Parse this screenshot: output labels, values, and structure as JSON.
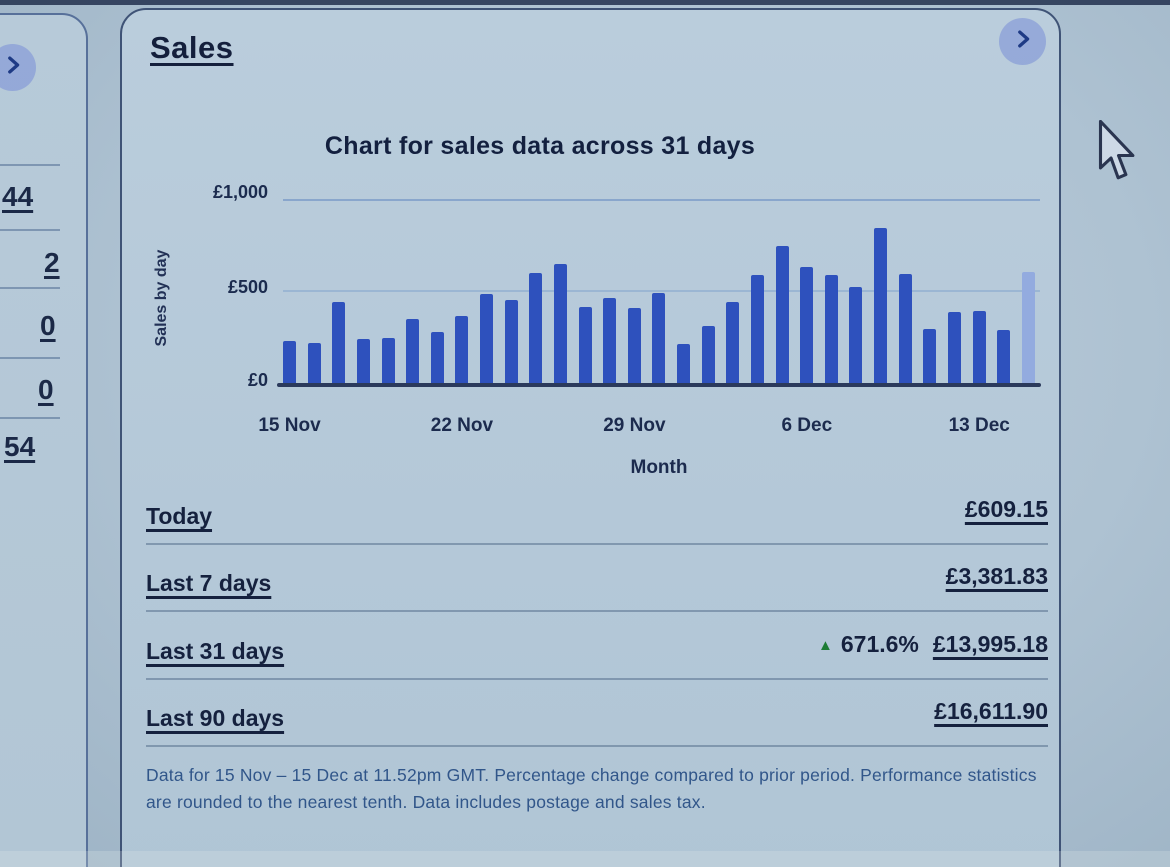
{
  "card": {
    "title": "Sales"
  },
  "left_panel": {
    "items": [
      "44",
      "2",
      "0",
      "0",
      "54"
    ]
  },
  "chart_data": {
    "type": "bar",
    "title": "Chart for sales data across 31 days",
    "ylabel": "Sales by day",
    "xlabel": "Month",
    "ylim": [
      0,
      1000
    ],
    "grid": true,
    "y_ticks": [
      "£1,000",
      "£500",
      "£0"
    ],
    "x_ticks": [
      "15 Nov",
      "22 Nov",
      "29 Nov",
      "6 Dec",
      "13 Dec"
    ],
    "x_tick_bar_indices": [
      0,
      7,
      14,
      21,
      28
    ],
    "categories": [
      "15 Nov",
      "16 Nov",
      "17 Nov",
      "18 Nov",
      "19 Nov",
      "20 Nov",
      "21 Nov",
      "22 Nov",
      "23 Nov",
      "24 Nov",
      "25 Nov",
      "26 Nov",
      "27 Nov",
      "28 Nov",
      "29 Nov",
      "30 Nov",
      "1 Dec",
      "2 Dec",
      "3 Dec",
      "4 Dec",
      "5 Dec",
      "6 Dec",
      "7 Dec",
      "8 Dec",
      "9 Dec",
      "10 Dec",
      "11 Dec",
      "12 Dec",
      "13 Dec",
      "14 Dec",
      "15 Dec"
    ],
    "values": [
      235,
      225,
      445,
      245,
      250,
      355,
      285,
      370,
      490,
      455,
      605,
      650,
      420,
      465,
      415,
      495,
      215,
      315,
      445,
      595,
      750,
      635,
      590,
      525,
      850,
      600,
      300,
      390,
      395,
      295,
      609
    ],
    "last_bar_faded": true,
    "units": "GBP"
  },
  "summary": {
    "rows": [
      {
        "label": "Today",
        "value": "£609.15"
      },
      {
        "label": "Last 7 days",
        "value": "£3,381.83"
      },
      {
        "label": "Last 31 days",
        "value": "£13,995.18",
        "change": "671.6%",
        "trend": "up"
      },
      {
        "label": "Last 90 days",
        "value": "£16,611.90"
      }
    ]
  },
  "icons": {
    "trend_up": "▲"
  },
  "footnote": "Data for 15 Nov – 15 Dec at 11.52pm GMT. Percentage change compared to prior period. Performance statistics are rounded to the nearest tenth. Data includes postage and sales tax.",
  "colors": {
    "bar": "#2e51bd",
    "bar_faded": "#93abdf",
    "trend_up_green": "#1d7c35",
    "ink": "#1a2745",
    "footnote_ink": "#31568a"
  }
}
